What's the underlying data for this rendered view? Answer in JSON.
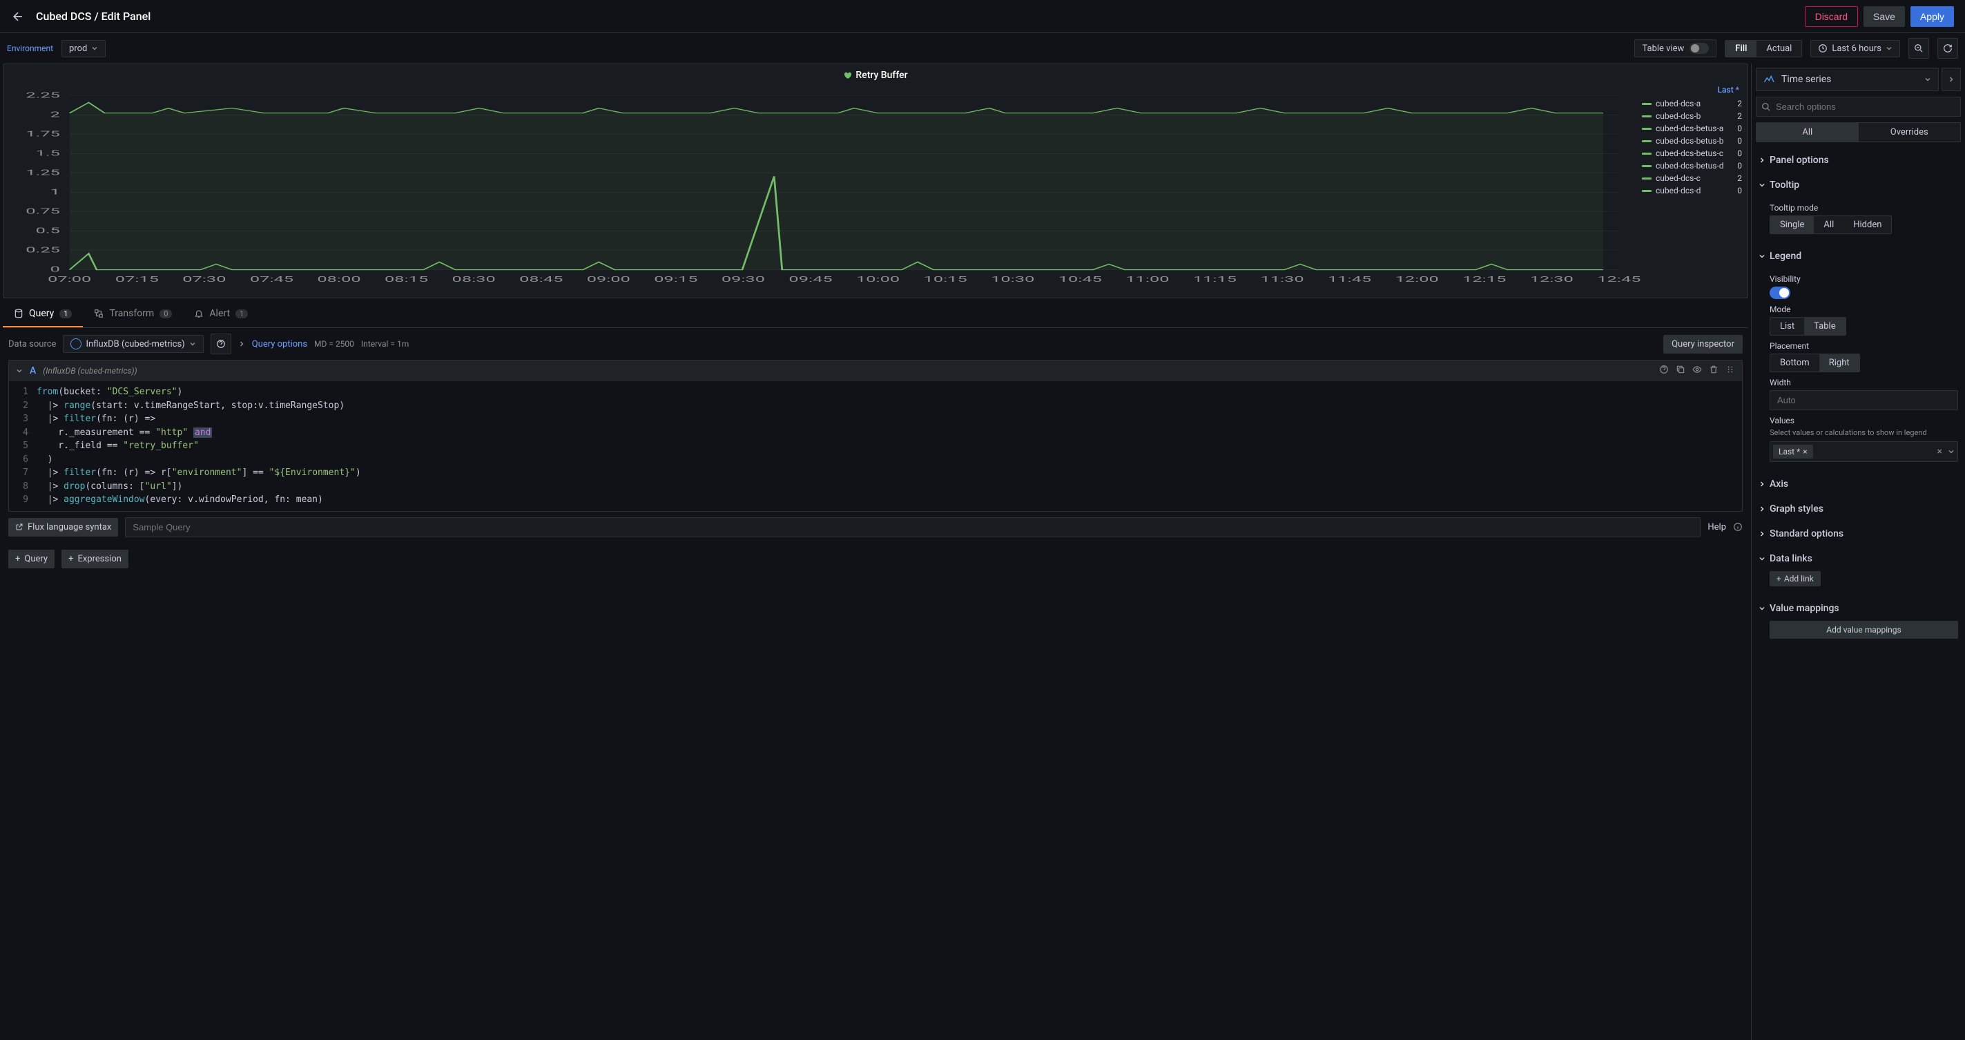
{
  "header": {
    "breadcrumb": "Cubed DCS / Edit Panel",
    "discard": "Discard",
    "save": "Save",
    "apply": "Apply"
  },
  "toolbar": {
    "env_label": "Environment",
    "env_value": "prod",
    "table_view": "Table view",
    "fill": "Fill",
    "actual": "Actual",
    "time_range": "Last 6 hours"
  },
  "chart": {
    "title": "Retry Buffer",
    "y_ticks": [
      "2.25",
      "2",
      "1.75",
      "1.5",
      "1.25",
      "1",
      "0.75",
      "0.5",
      "0.25",
      "0"
    ],
    "x_ticks": [
      "07:00",
      "07:15",
      "07:30",
      "07:45",
      "08:00",
      "08:15",
      "08:30",
      "08:45",
      "09:00",
      "09:15",
      "09:30",
      "09:45",
      "10:00",
      "10:15",
      "10:30",
      "10:45",
      "11:00",
      "11:15",
      "11:30",
      "11:45",
      "12:00",
      "12:15",
      "12:30",
      "12:45"
    ],
    "legend_header": "Last *",
    "series": [
      {
        "name": "cubed-dcs-a",
        "value": "2",
        "color": "#73bf69"
      },
      {
        "name": "cubed-dcs-b",
        "value": "2",
        "color": "#73bf69"
      },
      {
        "name": "cubed-dcs-betus-a",
        "value": "0",
        "color": "#73bf69"
      },
      {
        "name": "cubed-dcs-betus-b",
        "value": "0",
        "color": "#73bf69"
      },
      {
        "name": "cubed-dcs-betus-c",
        "value": "0",
        "color": "#73bf69"
      },
      {
        "name": "cubed-dcs-betus-d",
        "value": "0",
        "color": "#73bf69"
      },
      {
        "name": "cubed-dcs-c",
        "value": "2",
        "color": "#73bf69"
      },
      {
        "name": "cubed-dcs-d",
        "value": "0",
        "color": "#73bf69"
      }
    ],
    "ylim": [
      0,
      2.25
    ],
    "background": "#181b1f",
    "grid_color": "#2c3235",
    "line_top_path": "M 38 40 L 50 25 L 60 40 L 90 40 L 100 33 L 110 40 L 140 33 L 160 40 L 200 40 L 210 33 L 230 40 L 280 40 L 295 33 L 310 40 L 360 40 L 370 33 L 385 40 L 440 40 L 455 33 L 470 40 L 520 40 L 530 33 L 545 40 L 600 40 L 615 33 L 625 40 L 680 40 L 695 33 L 710 40 L 770 40 L 785 33 L 800 40 L 850 40 L 865 33 L 880 40 L 940 40 L 955 33 L 970 40 L 1000 40",
    "line_bottom_path": "M 38 263 L 50 240 L 55 263 L 120 263 L 130 255 L 140 263 L 260 263 L 270 252 L 280 263 L 360 263 L 370 252 L 380 263 L 460 263 L 480 130 L 485 263 L 560 263 L 570 252 L 580 263 L 680 263 L 690 255 L 700 263 L 800 263 L 810 255 L 820 263 L 920 263 L 930 255 L 940 263 L 1000 263"
  },
  "tabs": {
    "query": "Query",
    "query_count": "1",
    "transform": "Transform",
    "transform_count": "0",
    "alert": "Alert",
    "alert_count": "1"
  },
  "querybar": {
    "ds_label": "Data source",
    "ds_name": "InfluxDB (cubed-metrics)",
    "query_options": "Query options",
    "md": "MD = 2500",
    "interval": "Interval = 1m",
    "inspector": "Query inspector"
  },
  "editor": {
    "letter": "A",
    "ds_inline": "(InfluxDB (cubed-metrics))",
    "lines": [
      "1",
      "2",
      "3",
      "4",
      "5",
      "6",
      "7",
      "8",
      "9"
    ],
    "flux_syntax": "Flux language syntax",
    "sample_placeholder": "Sample Query",
    "help": "Help",
    "add_query": "Query",
    "add_expression": "Expression"
  },
  "sidebar": {
    "viz_name": "Time series",
    "search_placeholder": "Search options",
    "all": "All",
    "overrides": "Overrides",
    "panel_options": "Panel options",
    "tooltip": "Tooltip",
    "tooltip_mode_label": "Tooltip mode",
    "tooltip_single": "Single",
    "tooltip_all": "All",
    "tooltip_hidden": "Hidden",
    "legend": "Legend",
    "visibility": "Visibility",
    "mode": "Mode",
    "mode_list": "List",
    "mode_table": "Table",
    "placement": "Placement",
    "placement_bottom": "Bottom",
    "placement_right": "Right",
    "width": "Width",
    "width_placeholder": "Auto",
    "values": "Values",
    "values_sub": "Select values or calculations to show in legend",
    "values_chip": "Last *",
    "axis": "Axis",
    "graph_styles": "Graph styles",
    "standard_options": "Standard options",
    "data_links": "Data links",
    "add_link": "Add link",
    "value_mappings": "Value mappings",
    "add_value_mappings": "Add value mappings"
  }
}
